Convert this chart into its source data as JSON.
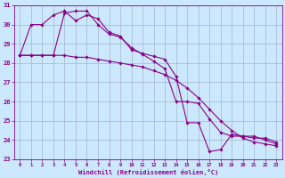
{
  "xlabel": "Windchill (Refroidissement éolien,°C)",
  "x_values": [
    0,
    1,
    2,
    3,
    4,
    5,
    6,
    7,
    8,
    9,
    10,
    11,
    12,
    13,
    14,
    15,
    16,
    17,
    18,
    19,
    20,
    21,
    22,
    23
  ],
  "line1": [
    28.4,
    28.4,
    28.4,
    28.4,
    28.4,
    28.3,
    28.3,
    28.2,
    28.1,
    28.0,
    27.9,
    27.8,
    27.6,
    27.4,
    27.1,
    26.7,
    26.2,
    25.6,
    25.0,
    24.5,
    24.1,
    23.9,
    23.8,
    23.7
  ],
  "line2": [
    28.4,
    30.0,
    30.0,
    30.5,
    30.7,
    30.2,
    30.5,
    30.3,
    29.6,
    29.4,
    28.7,
    28.5,
    28.35,
    28.2,
    27.3,
    24.9,
    24.9,
    23.4,
    23.5,
    24.3,
    24.2,
    24.2,
    24.0,
    23.8
  ],
  "line3": [
    28.4,
    28.4,
    28.4,
    28.4,
    30.6,
    30.7,
    30.7,
    30.0,
    29.5,
    29.35,
    28.8,
    28.45,
    28.1,
    27.7,
    26.0,
    26.0,
    25.9,
    25.1,
    24.4,
    24.2,
    24.2,
    24.1,
    24.1,
    23.9
  ],
  "ylim": [
    23,
    31
  ],
  "xlim": [
    -0.5,
    23.5
  ],
  "yticks": [
    23,
    24,
    25,
    26,
    27,
    28,
    29,
    30,
    31
  ],
  "xticks": [
    0,
    1,
    2,
    3,
    4,
    5,
    6,
    7,
    8,
    9,
    10,
    11,
    12,
    13,
    14,
    15,
    16,
    17,
    18,
    19,
    20,
    21,
    22,
    23
  ],
  "line_color": "#880088",
  "bg_color": "#cce8ff",
  "grid_color": "#99aabb",
  "marker": "D",
  "marker_size": 1.8,
  "linewidth": 0.8
}
